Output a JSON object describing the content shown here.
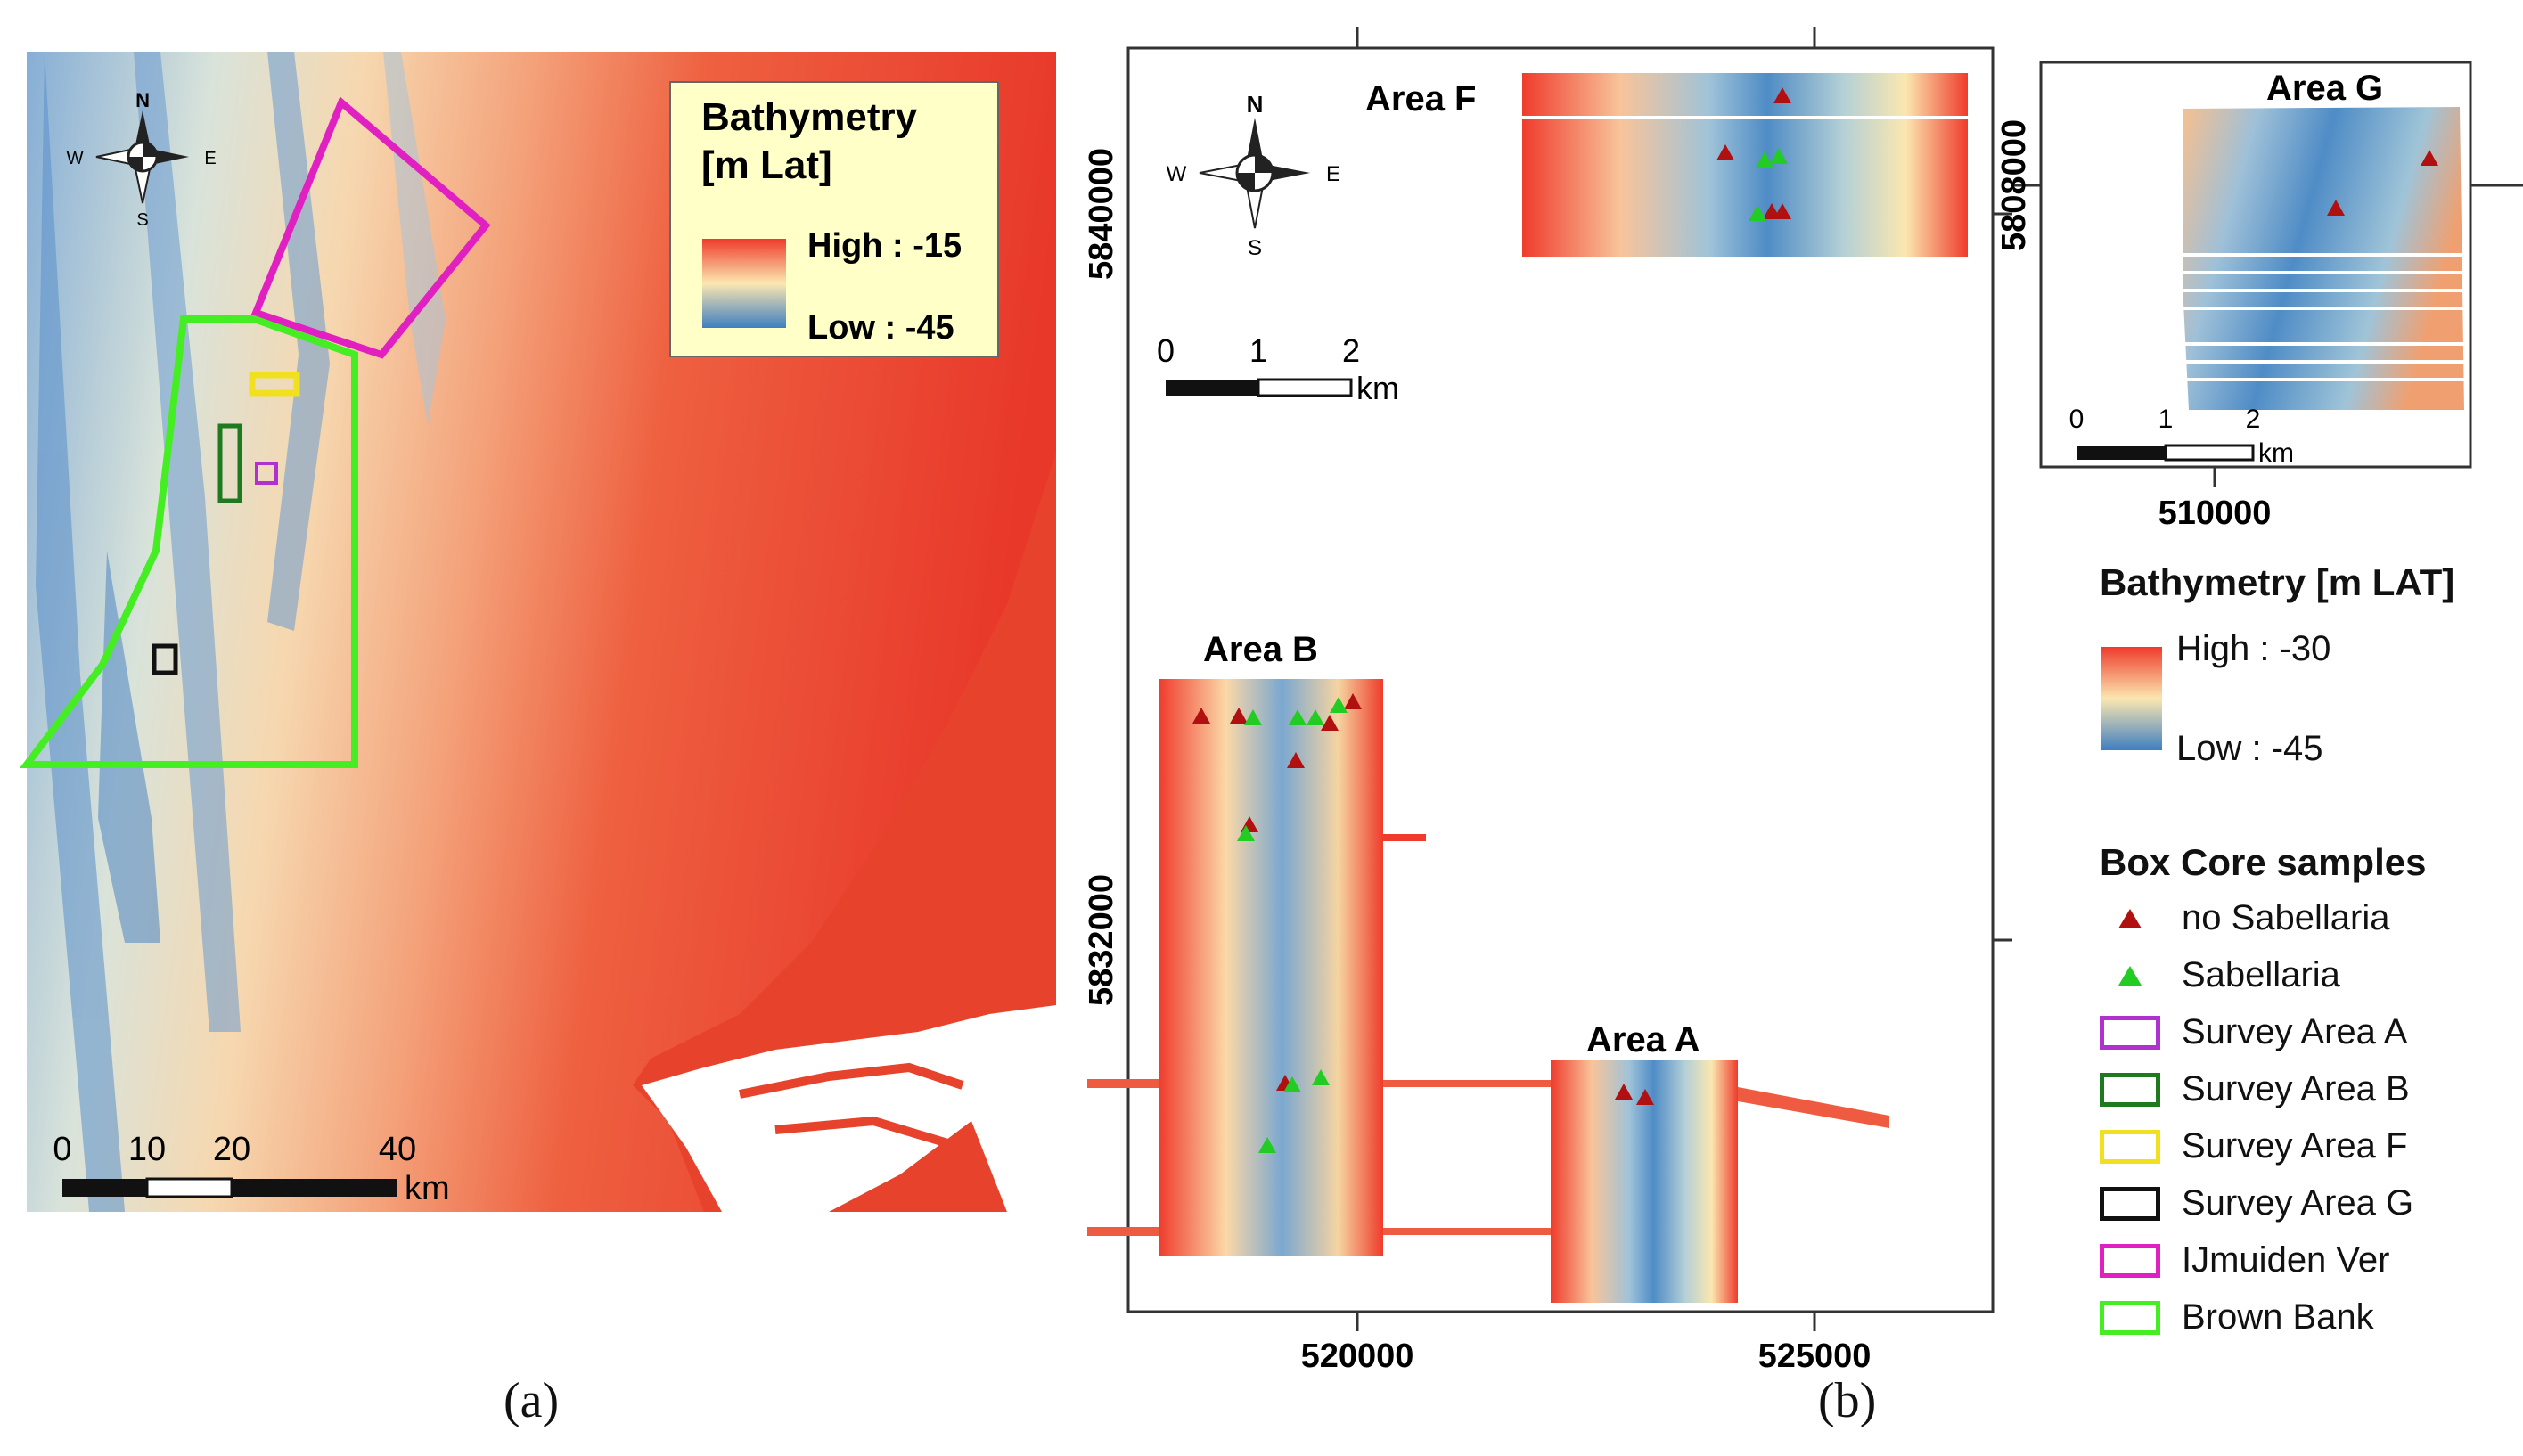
{
  "panel_a": {
    "legend": {
      "title_line1": "Bathymetry",
      "title_line2": "[m Lat]",
      "high_label": "High : -15",
      "low_label": "Low : -45"
    },
    "compass": {
      "n": "N",
      "s": "S",
      "e": "E",
      "w": "W"
    },
    "scale": {
      "t0": "0",
      "t1": "10",
      "t2": "20",
      "t3": "40",
      "unit": "km"
    },
    "caption": "(a)"
  },
  "panel_b": {
    "areas": {
      "f": "Area F",
      "b": "Area B",
      "a": "Area A",
      "g": "Area G"
    },
    "compass": {
      "n": "N",
      "s": "S",
      "e": "E",
      "w": "W"
    },
    "scale": {
      "t0": "0",
      "t1": "1",
      "t2": "2",
      "unit": "km"
    },
    "scale_g": {
      "t0": "0",
      "t1": "1",
      "t2": "2",
      "unit": "km"
    },
    "y_ticks": [
      "5840000",
      "5832000"
    ],
    "x_ticks": [
      "520000",
      "525000"
    ],
    "g_y_tick": "5808000",
    "g_x_tick": "510000",
    "caption": "(b)"
  },
  "legend_b": {
    "title": "Bathymetry [m LAT]",
    "high_label": "High : -30",
    "low_label": "Low : -45",
    "samples_title": "Box Core samples",
    "items": [
      {
        "label": "no Sabellaria",
        "color": "#b01010",
        "kind": "triangle"
      },
      {
        "label": "Sabellaria",
        "color": "#22cc22",
        "kind": "triangle"
      },
      {
        "label": "Survey Area A",
        "color": "#b030d0",
        "kind": "box"
      },
      {
        "label": "Survey Area B",
        "color": "#1e7a1e",
        "kind": "box"
      },
      {
        "label": "Survey Area F",
        "color": "#f0e020",
        "kind": "box"
      },
      {
        "label": "Survey Area G",
        "color": "#111111",
        "kind": "box"
      },
      {
        "label": "IJmuiden Ver",
        "color": "#e020c0",
        "kind": "box"
      },
      {
        "label": "Brown Bank",
        "color": "#44ee22",
        "kind": "box"
      }
    ]
  },
  "colors": {
    "high": "#ef3b2c",
    "mid": "#fbe7b0",
    "low": "#3f7fc0",
    "ijmuiden": "#e020c0",
    "brown_bank": "#44ee22",
    "survey_a": "#b030d0",
    "survey_b": "#1e7a1e",
    "survey_f": "#f0e020",
    "survey_g": "#111111",
    "no_sab": "#b01010",
    "sab": "#22cc22"
  }
}
